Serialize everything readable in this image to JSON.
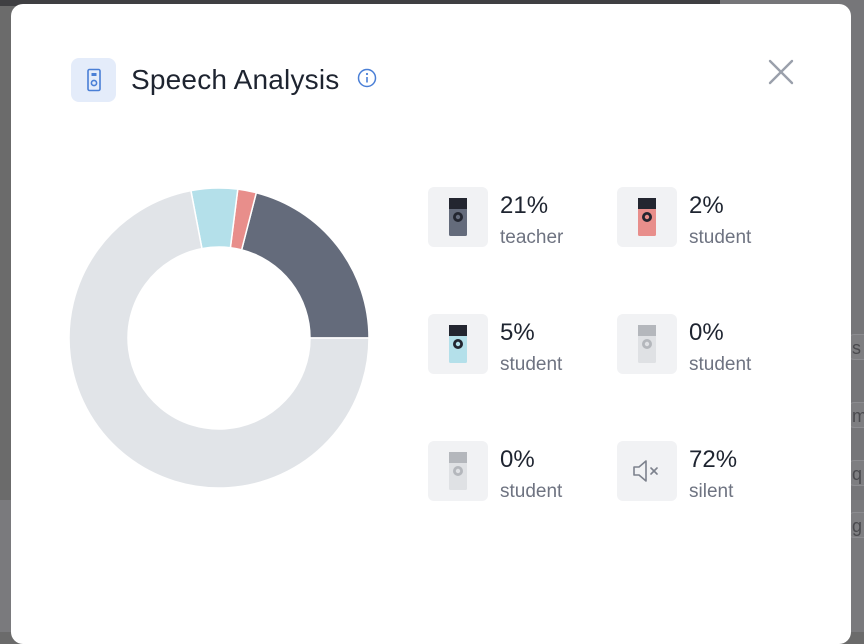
{
  "modal": {
    "title": "Speech Analysis",
    "header_icon": "speaker-device-icon",
    "info_icon": "info-icon",
    "close_icon": "close-icon"
  },
  "colors": {
    "teacher": "#646b7b",
    "student_red": "#e88e8b",
    "student_blue": "#b4e0ea",
    "student_grey": "#d2d4d8",
    "silent": "#e1e4e8",
    "accent": "#4a7fd6"
  },
  "chart_data": {
    "type": "pie",
    "categories": [
      "teacher",
      "student",
      "student",
      "student",
      "student",
      "silent"
    ],
    "values": [
      21,
      2,
      5,
      0,
      0,
      72
    ]
  },
  "legend": [
    {
      "pct": "21%",
      "label": "teacher",
      "icon": "speaker-device-icon"
    },
    {
      "pct": "2%",
      "label": "student",
      "icon": "speaker-device-icon"
    },
    {
      "pct": "5%",
      "label": "student",
      "icon": "speaker-device-icon"
    },
    {
      "pct": "0%",
      "label": "student",
      "icon": "speaker-device-icon"
    },
    {
      "pct": "0%",
      "label": "student",
      "icon": "speaker-device-icon"
    },
    {
      "pct": "72%",
      "label": "silent",
      "icon": "muted-speaker-icon"
    }
  ],
  "background": {
    "fragments": [
      "s",
      "m",
      "q",
      "g"
    ]
  }
}
